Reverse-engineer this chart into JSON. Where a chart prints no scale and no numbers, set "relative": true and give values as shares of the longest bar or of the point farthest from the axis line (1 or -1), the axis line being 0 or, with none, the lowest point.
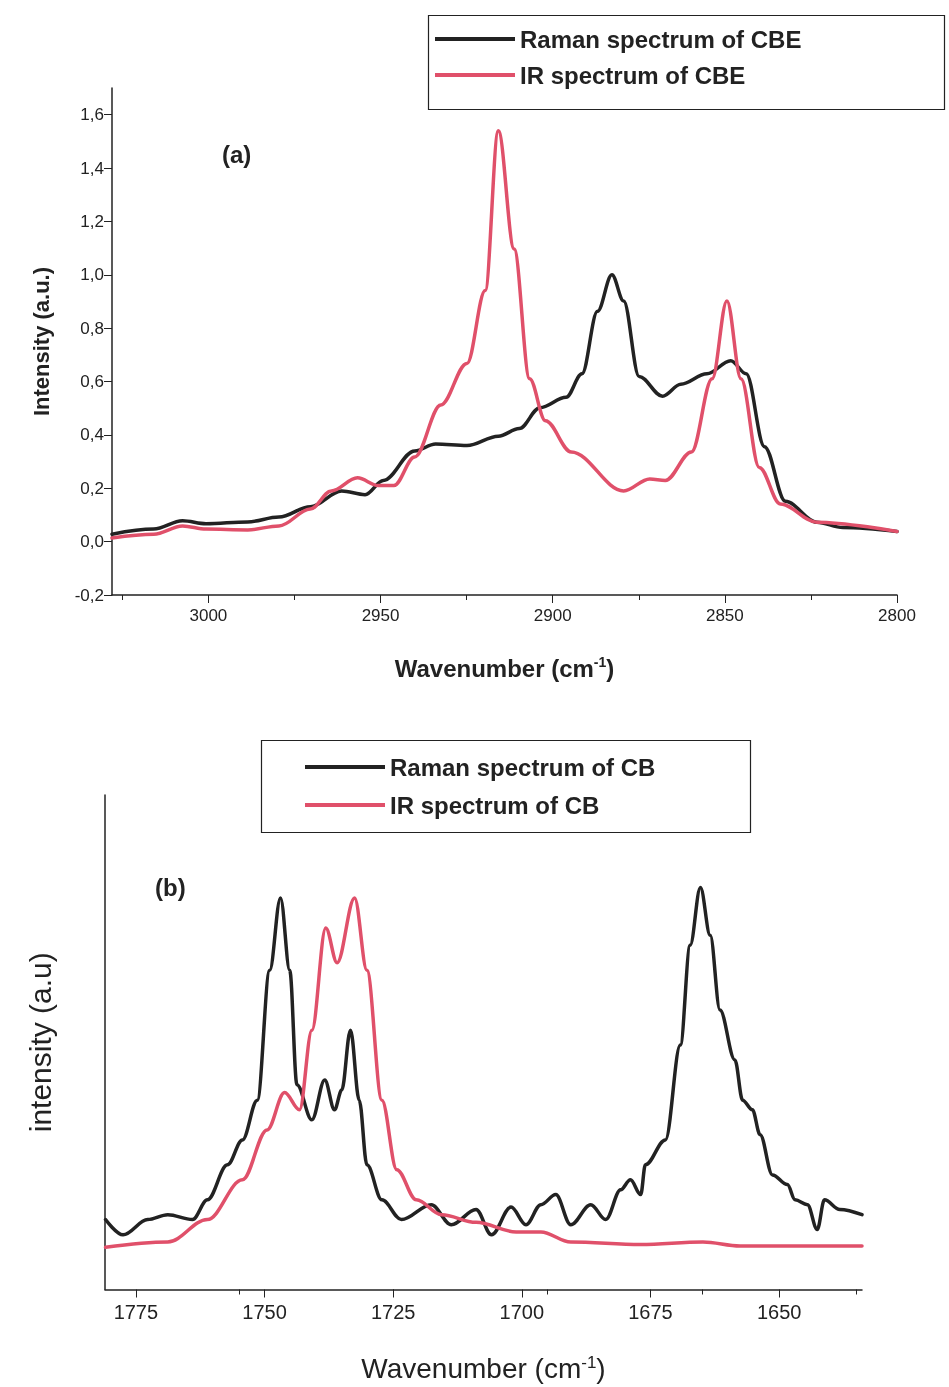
{
  "chart_data": [
    {
      "type": "line",
      "xlabel": "Wavenumber (cm$^{-1}$)",
      "ylabel": "Intensity (a.u.)",
      "annotations": [
        "(a)"
      ],
      "xlim": [
        3028,
        2800
      ],
      "xticks": [
        3000,
        2950,
        2900,
        2850,
        2800
      ],
      "ylim": [
        -0.2,
        1.7
      ],
      "yticks": [
        {
          "value": -0.2,
          "label": "-0,2"
        },
        {
          "value": 0,
          "label": "0,0"
        },
        {
          "value": 0.2,
          "label": "0,2"
        },
        {
          "value": 0.4,
          "label": "0,4"
        },
        {
          "value": 0.6,
          "label": "0,6"
        },
        {
          "value": 0.8,
          "label": "0,8"
        },
        {
          "value": 1,
          "label": "1,0"
        },
        {
          "value": 1.2,
          "label": "1,2"
        },
        {
          "value": 1.4,
          "label": "1,4"
        },
        {
          "value": 1.6,
          "label": "1,6"
        }
      ],
      "grid": false,
      "legend": "top right",
      "marker": "none",
      "line_style": "solid",
      "series": [
        {
          "name": "Raman spectrum of CBE",
          "color": "#222222",
          "x": [
            3028.0,
            3015.9,
            3007.5,
            3000.7,
            2988.6,
            2979.5,
            2970.4,
            2961.3,
            2954.5,
            2949.2,
            2940.1,
            2934.0,
            2924.9,
            2915.8,
            2909.7,
            2903.7,
            2896.1,
            2891.5,
            2887.0,
            2882.8,
            2879.4,
            2874.9,
            2868.1,
            2862.8,
            2855.2,
            2848.3,
            2843.8,
            2838.5,
            2832.4,
            2823.3,
            2815.7,
            2800
          ],
          "values": [
            0.028,
            0.047,
            0.078,
            0.067,
            0.074,
            0.092,
            0.131,
            0.19,
            0.176,
            0.229,
            0.34,
            0.366,
            0.36,
            0.395,
            0.424,
            0.502,
            0.541,
            0.629,
            0.863,
            1.0,
            0.902,
            0.619,
            0.545,
            0.59,
            0.629,
            0.678,
            0.629,
            0.356,
            0.151,
            0.073,
            0.053,
            0.038
          ]
        },
        {
          "name": "IR spectrum of CBE",
          "color": "#e0506a",
          "x": [
            3028.0,
            3015.9,
            3007.5,
            3000.7,
            2988.6,
            2979.5,
            2970.4,
            2964.3,
            2956.7,
            2950.7,
            2946.1,
            2940.1,
            2932.5,
            2924.9,
            2919.6,
            2915.8,
            2911.2,
            2906.7,
            2902.1,
            2894.6,
            2879.4,
            2871.8,
            2867.3,
            2859.7,
            2853.7,
            2849.4,
            2845.3,
            2840.0,
            2833.9,
            2823.3,
            2800
          ],
          "values": [
            0.014,
            0.028,
            0.059,
            0.047,
            0.044,
            0.059,
            0.122,
            0.19,
            0.239,
            0.21,
            0.21,
            0.317,
            0.512,
            0.668,
            0.941,
            1.54,
            1.097,
            0.61,
            0.453,
            0.336,
            0.19,
            0.235,
            0.229,
            0.336,
            0.61,
            0.902,
            0.61,
            0.278,
            0.141,
            0.073,
            0.038
          ]
        }
      ]
    },
    {
      "type": "line",
      "xlabel": "Wavenumber (cm$^{-1}$)",
      "ylabel": "intensity (a.u)",
      "annotations": [
        "(b)"
      ],
      "relative": true,
      "xlim": [
        1781,
        1633.9
      ],
      "xticks": [
        1775,
        1750,
        1725,
        1700,
        1675,
        1650
      ],
      "grid": false,
      "legend": "top",
      "marker": "none",
      "line_style": "solid",
      "series": [
        {
          "name": "Raman spectrum of CB",
          "color": "#222222",
          "x": [
            1780.9,
            1777.5,
            1772.7,
            1768.8,
            1764.0,
            1761.1,
            1757.2,
            1754.3,
            1751.4,
            1749.0,
            1746.9,
            1745.1,
            1743.7,
            1740.8,
            1738.3,
            1736.4,
            1735.0,
            1733.3,
            1731.6,
            1730.1,
            1727.2,
            1723.4,
            1717.6,
            1713.7,
            1708.9,
            1705.9,
            1702.1,
            1699.2,
            1696.3,
            1693.4,
            1690.5,
            1686.6,
            1683.7,
            1680.8,
            1678.9,
            1676.9,
            1676.0,
            1672.1,
            1669.2,
            1667.3,
            1665.3,
            1663.4,
            1661.5,
            1658.6,
            1657.1,
            1655.2,
            1653.7,
            1651.3,
            1648.4,
            1646.9,
            1644.5,
            1642.6,
            1641.2,
            1638.2,
            1633.9
          ],
          "values": [
            0.174,
            0.136,
            0.174,
            0.186,
            0.174,
            0.223,
            0.31,
            0.372,
            0.471,
            0.794,
            0.974,
            0.794,
            0.509,
            0.422,
            0.521,
            0.447,
            0.496,
            0.645,
            0.471,
            0.31,
            0.223,
            0.174,
            0.211,
            0.161,
            0.199,
            0.136,
            0.205,
            0.161,
            0.211,
            0.236,
            0.161,
            0.211,
            0.174,
            0.248,
            0.273,
            0.236,
            0.31,
            0.372,
            0.608,
            0.856,
            1.0,
            0.881,
            0.695,
            0.571,
            0.471,
            0.447,
            0.385,
            0.285,
            0.261,
            0.223,
            0.211,
            0.149,
            0.223,
            0.199,
            0.186
          ]
        },
        {
          "name": "IR spectrum of CB",
          "color": "#e0506a",
          "x": [
            1780.9,
            1768.8,
            1761.1,
            1754.3,
            1749.5,
            1746.1,
            1743.2,
            1740.8,
            1738.1,
            1735.9,
            1732.5,
            1730.1,
            1727.2,
            1724.3,
            1720.5,
            1715.6,
            1708.9,
            1701.1,
            1696.3,
            1690.5,
            1676.9,
            1664.8,
            1657.6,
            1633.9
          ],
          "values": [
            0.105,
            0.118,
            0.174,
            0.273,
            0.397,
            0.49,
            0.447,
            0.645,
            0.899,
            0.813,
            0.974,
            0.794,
            0.471,
            0.298,
            0.223,
            0.186,
            0.167,
            0.143,
            0.143,
            0.118,
            0.112,
            0.118,
            0.108,
            0.108
          ]
        }
      ]
    }
  ]
}
